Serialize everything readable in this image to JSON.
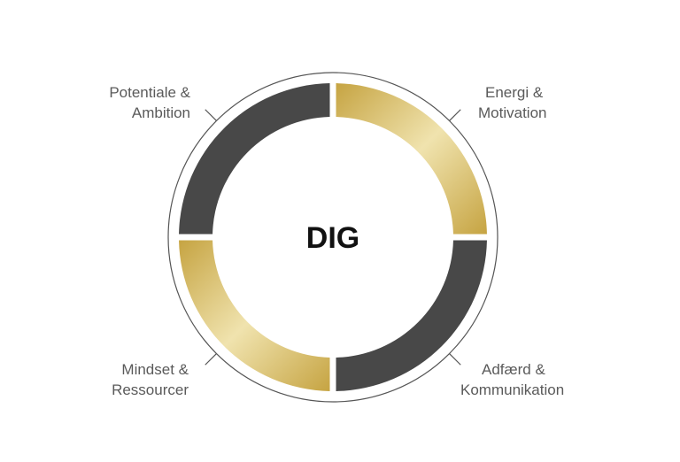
{
  "center_label": "DIG",
  "segments": [
    {
      "label_line1": "Potentiale &",
      "label_line2": "Ambition",
      "fill": "dark"
    },
    {
      "label_line1": "Energi &",
      "label_line2": "Motivation",
      "fill": "gold"
    },
    {
      "label_line1": "Adfærd &",
      "label_line2": "Kommunikation",
      "fill": "dark"
    },
    {
      "label_line1": "Mindset &",
      "label_line2": "Ressourcer",
      "fill": "gold"
    }
  ],
  "colors": {
    "dark": "#484848",
    "gold_dark": "#c6a442",
    "gold_light": "#f0e3ae",
    "text": "#5a5a5a",
    "outline": "#555555"
  }
}
